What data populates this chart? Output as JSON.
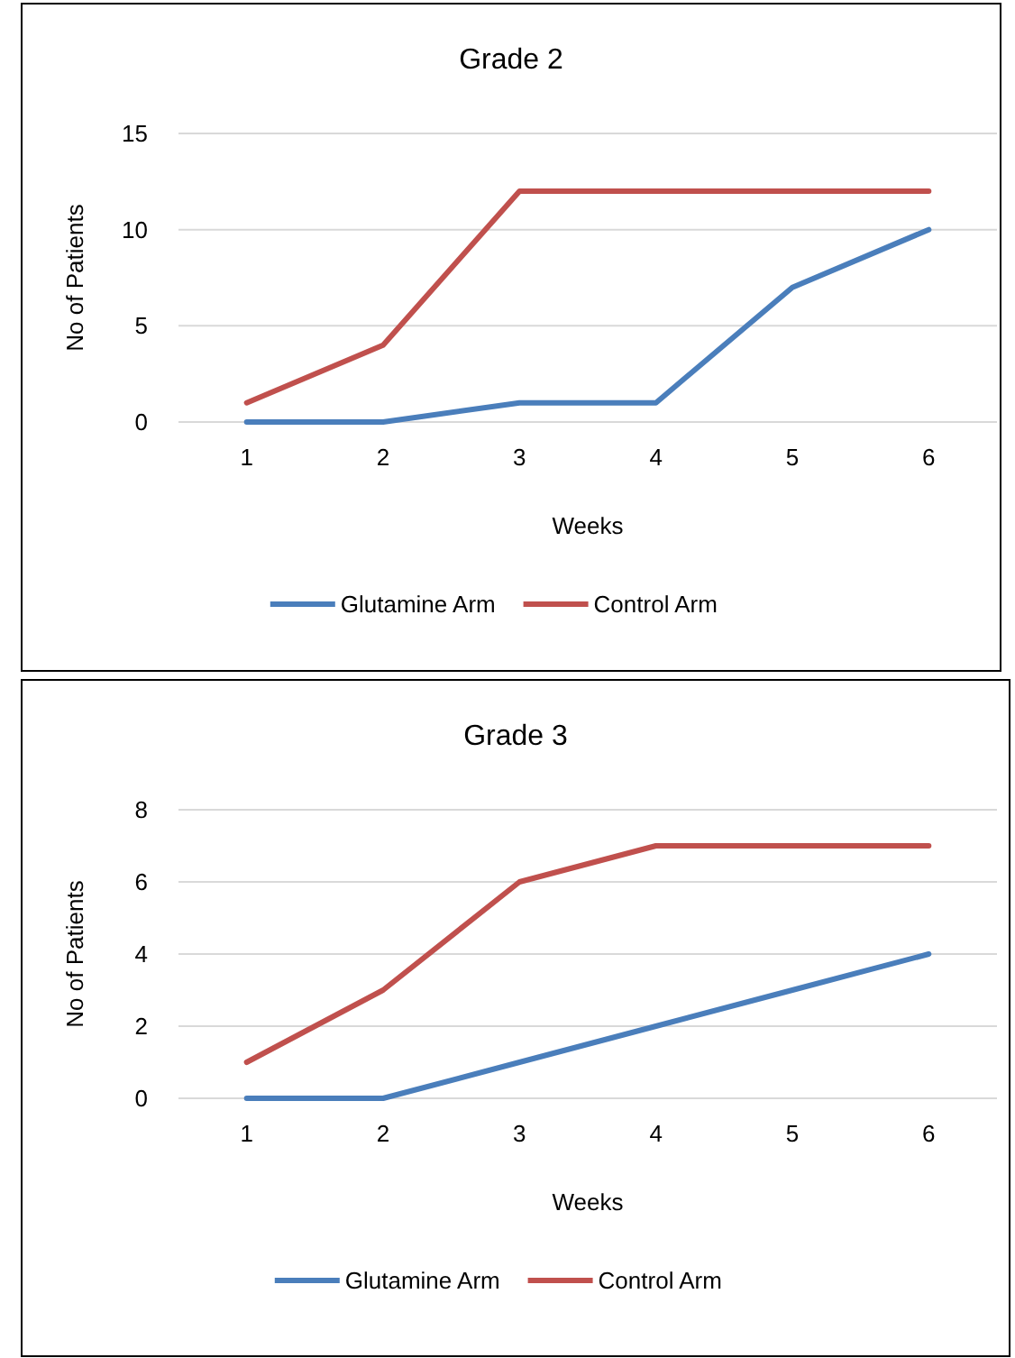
{
  "chart_data": [
    {
      "type": "line",
      "title": "Grade 2",
      "xlabel": "Weeks",
      "ylabel": "No of Patients",
      "categories": [
        "1",
        "2",
        "3",
        "4",
        "5",
        "6"
      ],
      "ylim": [
        0,
        15
      ],
      "yticks": [
        0,
        5,
        10,
        15
      ],
      "grid": "y",
      "legend": "bottom",
      "marker": "none",
      "line_style": "solid",
      "series": [
        {
          "name": "Glutamine Arm",
          "color": "#4a7ebb",
          "values": [
            0,
            0,
            1,
            1,
            7,
            10
          ]
        },
        {
          "name": "Control Arm",
          "color": "#c0504d",
          "values": [
            1,
            4,
            12,
            12,
            12,
            12
          ]
        }
      ]
    },
    {
      "type": "line",
      "title": "Grade 3",
      "xlabel": "Weeks",
      "ylabel": "No of Patients",
      "categories": [
        "1",
        "2",
        "3",
        "4",
        "5",
        "6"
      ],
      "ylim": [
        0,
        8
      ],
      "yticks": [
        0,
        2,
        4,
        6,
        8
      ],
      "grid": "y",
      "legend": "bottom",
      "marker": "none",
      "line_style": "solid",
      "series": [
        {
          "name": "Glutamine Arm",
          "color": "#4a7ebb",
          "values": [
            0,
            0,
            1,
            2,
            3,
            4
          ]
        },
        {
          "name": "Control Arm",
          "color": "#c0504d",
          "values": [
            1,
            3,
            6,
            7,
            7,
            7
          ]
        }
      ]
    }
  ]
}
